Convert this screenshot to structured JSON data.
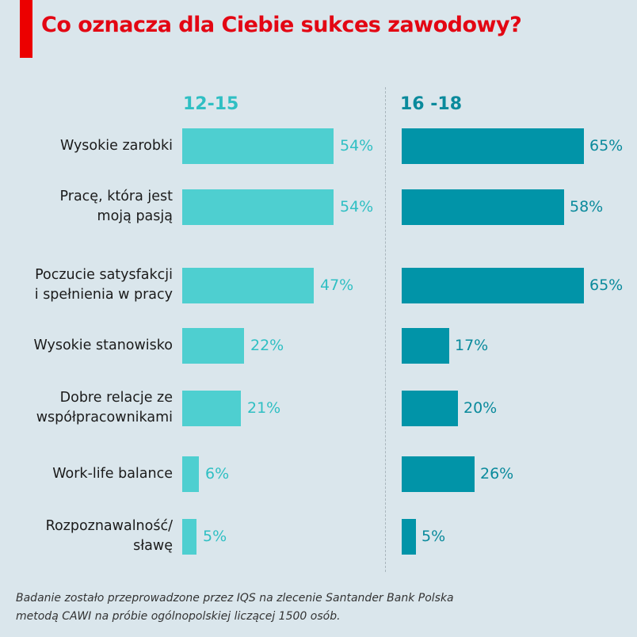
{
  "title": "Co oznacza dla Ciebie sukces zawodowy?",
  "colors": {
    "accent": "#ec0000",
    "title": "#e30613",
    "series_12_15": "#4ecfd0",
    "series_16_18": "#0194a8",
    "label_12_15": "#2fbfc3",
    "label_16_18": "#0a8a9c",
    "background": "#dae6ec"
  },
  "footnote": {
    "line1": "Badanie zostało przeprowadzone przez IQS na zlecenie Santander Bank Polska",
    "line2": "metodą CAWI na próbie ogólnopolskiej liczącej 1500 osób."
  },
  "chart_data": {
    "type": "bar",
    "orientation": "horizontal",
    "title": "Co oznacza dla Ciebie sukces zawodowy?",
    "categories": [
      "Wysokie zarobki",
      "Pracę, która jest moją pasją",
      "Poczucie satysfakcji i spełnienia w pracy",
      "Wysokie stanowisko",
      "Dobre relacje ze współpracownikami",
      "Work-life balance",
      "Rozpoznawalność/ sławę"
    ],
    "series": [
      {
        "name": "12-15",
        "values": [
          54,
          54,
          47,
          22,
          21,
          6,
          5
        ]
      },
      {
        "name": "16 -18",
        "values": [
          65,
          58,
          65,
          17,
          20,
          26,
          5
        ]
      }
    ],
    "unit": "%",
    "xlabel": "",
    "ylabel": "",
    "grid": false,
    "legend": "column headers"
  },
  "rows": [
    {
      "label1": "Wysokie zarobki",
      "label2": "",
      "a": "54%",
      "b": "65%"
    },
    {
      "label1": "Pracę, która jest",
      "label2": "moją pasją",
      "a": "54%",
      "b": "58%"
    },
    {
      "label1": "Poczucie satysfakcji",
      "label2": "i spełnienia w pracy",
      "a": "47%",
      "b": "65%"
    },
    {
      "label1": "Wysokie stanowisko",
      "label2": "",
      "a": "22%",
      "b": "17%"
    },
    {
      "label1": "Dobre relacje ze",
      "label2": "współpracownikami",
      "a": "21%",
      "b": "20%"
    },
    {
      "label1": "Work-life balance",
      "label2": "",
      "a": "6%",
      "b": "26%"
    },
    {
      "label1": "Rozpoznawalność/",
      "label2": "sławę",
      "a": "5%",
      "b": "5%"
    }
  ]
}
